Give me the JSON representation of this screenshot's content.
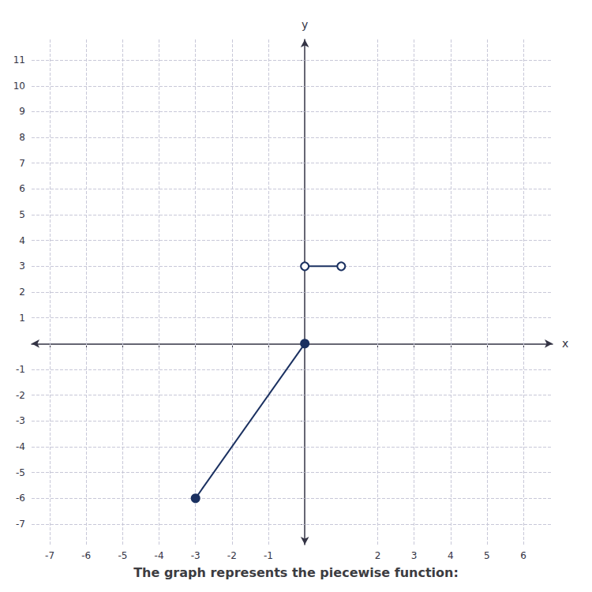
{
  "chart_data": {
    "type": "line",
    "title": "The graph represents the piecewise function:",
    "xlabel": "x",
    "ylabel": "y",
    "xlim": [
      -7.5,
      6.8
    ],
    "ylim": [
      -7.8,
      11.8
    ],
    "xticks": [
      -7,
      -6,
      -5,
      -4,
      -3,
      -2,
      -1,
      2,
      3,
      4,
      5,
      6
    ],
    "yticks": [
      -7,
      -6,
      -5,
      -4,
      -3,
      -2,
      -1,
      1,
      2,
      3,
      4,
      5,
      6,
      7,
      8,
      9,
      10,
      11
    ],
    "grid": true,
    "series": [
      {
        "x": [
          0,
          1
        ],
        "values": [
          3,
          3
        ],
        "color": "#1a3060",
        "marker": "open_circle"
      },
      {
        "x": [
          -3,
          0
        ],
        "values": [
          -6,
          0
        ],
        "color": "#1a3060",
        "marker": "circle"
      }
    ]
  }
}
